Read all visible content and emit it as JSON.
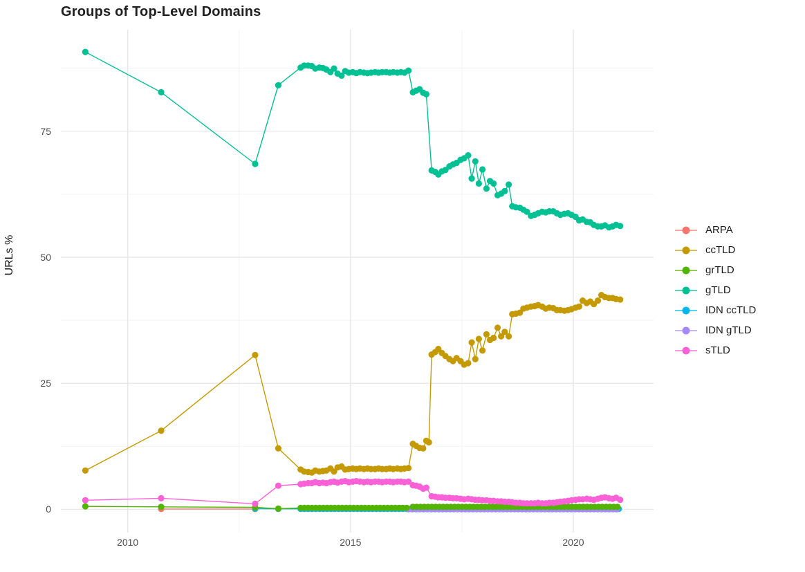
{
  "chart_data": {
    "type": "line",
    "title": "Groups of Top-Level Domains",
    "xlabel": "",
    "ylabel": "URLs %",
    "xlim": [
      2008.5,
      2021.8
    ],
    "ylim": [
      -4.6,
      95.1
    ],
    "x_major_ticks": [
      2010,
      2015,
      2020
    ],
    "x_tick_labels": [
      "2010",
      "2015",
      "2020"
    ],
    "x_minor_gridlines": [
      2012.5,
      2017.5
    ],
    "y_major_ticks": [
      0,
      25,
      50,
      75
    ],
    "y_tick_labels": [
      "0",
      "25",
      "50",
      "75"
    ],
    "y_minor_gridlines": [
      12.5,
      37.5,
      62.5,
      87.5
    ],
    "grid": "major-and-minor, light gray on white",
    "legend_position": "right",
    "colors": {
      "major_grid": "#e7e7e7",
      "minor_grid": "#f3f3f3",
      "tick_text": "#4d4d4d",
      "title_text": "#1f1f1f"
    },
    "series": [
      {
        "name": "ARPA",
        "color": "#F8766D",
        "points": [
          [
            2010.75,
            0.08
          ],
          [
            2012.86,
            0.08
          ]
        ]
      },
      {
        "name": "ccTLD",
        "color": "#C49A00",
        "points": [
          [
            2009.05,
            7.7
          ],
          [
            2010.75,
            15.6
          ],
          [
            2012.86,
            30.6
          ],
          [
            2013.38,
            12.1
          ],
          [
            2013.88,
            7.9
          ],
          [
            2013.96,
            7.5
          ],
          [
            2014.05,
            7.4
          ],
          [
            2014.13,
            7.3
          ],
          [
            2014.21,
            7.7
          ],
          [
            2014.3,
            7.5
          ],
          [
            2014.38,
            7.6
          ],
          [
            2014.46,
            7.7
          ],
          [
            2014.55,
            8.1
          ],
          [
            2014.63,
            7.5
          ],
          [
            2014.71,
            8.3
          ],
          [
            2014.8,
            8.5
          ],
          [
            2014.88,
            7.9
          ],
          [
            2014.96,
            8.0
          ],
          [
            2015.05,
            8.1
          ],
          [
            2015.13,
            8.0
          ],
          [
            2015.21,
            8.1
          ],
          [
            2015.3,
            8.0
          ],
          [
            2015.38,
            8.1
          ],
          [
            2015.46,
            8.0
          ],
          [
            2015.55,
            8.0
          ],
          [
            2015.63,
            8.1
          ],
          [
            2015.71,
            8.0
          ],
          [
            2015.8,
            8.0
          ],
          [
            2015.88,
            8.1
          ],
          [
            2015.96,
            8.0
          ],
          [
            2016.05,
            8.1
          ],
          [
            2016.13,
            8.0
          ],
          [
            2016.21,
            8.1
          ],
          [
            2016.3,
            8.2
          ],
          [
            2016.4,
            13.0
          ],
          [
            2016.47,
            12.6
          ],
          [
            2016.55,
            12.2
          ],
          [
            2016.63,
            12.1
          ],
          [
            2016.7,
            13.6
          ],
          [
            2016.76,
            13.3
          ],
          [
            2016.82,
            30.7
          ],
          [
            2016.9,
            31.2
          ],
          [
            2016.97,
            31.8
          ],
          [
            2017.05,
            31.0
          ],
          [
            2017.13,
            30.4
          ],
          [
            2017.22,
            29.8
          ],
          [
            2017.3,
            29.4
          ],
          [
            2017.38,
            30.0
          ],
          [
            2017.47,
            29.4
          ],
          [
            2017.55,
            28.7
          ],
          [
            2017.64,
            29.0
          ],
          [
            2017.72,
            33.1
          ],
          [
            2017.8,
            29.8
          ],
          [
            2017.88,
            33.8
          ],
          [
            2017.96,
            31.5
          ],
          [
            2018.05,
            34.7
          ],
          [
            2018.13,
            33.6
          ],
          [
            2018.21,
            34.0
          ],
          [
            2018.3,
            36.0
          ],
          [
            2018.38,
            34.3
          ],
          [
            2018.46,
            35.2
          ],
          [
            2018.55,
            34.3
          ],
          [
            2018.63,
            38.7
          ],
          [
            2018.71,
            38.8
          ],
          [
            2018.8,
            39.0
          ],
          [
            2018.88,
            39.8
          ],
          [
            2018.96,
            40.0
          ],
          [
            2019.05,
            40.2
          ],
          [
            2019.13,
            40.3
          ],
          [
            2019.21,
            40.5
          ],
          [
            2019.3,
            40.2
          ],
          [
            2019.38,
            39.8
          ],
          [
            2019.46,
            40.0
          ],
          [
            2019.55,
            39.9
          ],
          [
            2019.63,
            39.5
          ],
          [
            2019.71,
            39.5
          ],
          [
            2019.8,
            39.4
          ],
          [
            2019.88,
            39.5
          ],
          [
            2019.96,
            39.7
          ],
          [
            2020.05,
            40.0
          ],
          [
            2020.13,
            40.2
          ],
          [
            2020.21,
            41.4
          ],
          [
            2020.3,
            40.9
          ],
          [
            2020.38,
            41.2
          ],
          [
            2020.46,
            40.7
          ],
          [
            2020.55,
            41.4
          ],
          [
            2020.63,
            42.5
          ],
          [
            2020.71,
            42.1
          ],
          [
            2020.8,
            41.9
          ],
          [
            2020.88,
            41.9
          ],
          [
            2020.96,
            41.7
          ],
          [
            2021.05,
            41.6
          ]
        ]
      },
      {
        "name": "grTLD",
        "color": "#53B400",
        "points": [
          [
            2009.05,
            0.6
          ],
          [
            2010.75,
            0.5
          ],
          [
            2012.86,
            0.4
          ],
          [
            2013.38,
            0.15
          ]
        ],
        "flat": {
          "from": 2013.88,
          "to": 2016.3,
          "step": 0.085,
          "value": 0.3
        },
        "flat2": {
          "from": 2016.4,
          "to": 2021.05,
          "step": 0.085,
          "value": 0.5
        }
      },
      {
        "name": "gTLD",
        "color": "#00C094",
        "points": [
          [
            2009.05,
            90.7
          ],
          [
            2010.75,
            82.7
          ],
          [
            2012.86,
            68.5
          ],
          [
            2013.38,
            84.1
          ],
          [
            2013.88,
            87.6
          ],
          [
            2013.96,
            88.0
          ],
          [
            2014.05,
            88.0
          ],
          [
            2014.13,
            87.9
          ],
          [
            2014.21,
            87.4
          ],
          [
            2014.3,
            87.6
          ],
          [
            2014.38,
            87.5
          ],
          [
            2014.46,
            87.2
          ],
          [
            2014.55,
            86.7
          ],
          [
            2014.63,
            87.4
          ],
          [
            2014.71,
            86.4
          ],
          [
            2014.8,
            86.0
          ],
          [
            2014.88,
            86.9
          ],
          [
            2014.96,
            86.6
          ],
          [
            2015.05,
            86.7
          ],
          [
            2015.13,
            86.5
          ],
          [
            2015.21,
            86.7
          ],
          [
            2015.3,
            86.6
          ],
          [
            2015.38,
            86.5
          ],
          [
            2015.46,
            86.6
          ],
          [
            2015.55,
            86.7
          ],
          [
            2015.63,
            86.6
          ],
          [
            2015.71,
            86.7
          ],
          [
            2015.8,
            86.7
          ],
          [
            2015.88,
            86.6
          ],
          [
            2015.96,
            86.7
          ],
          [
            2016.05,
            86.6
          ],
          [
            2016.13,
            86.7
          ],
          [
            2016.21,
            86.6
          ],
          [
            2016.3,
            87.0
          ],
          [
            2016.4,
            82.7
          ],
          [
            2016.47,
            83.0
          ],
          [
            2016.55,
            83.3
          ],
          [
            2016.63,
            82.6
          ],
          [
            2016.7,
            82.3
          ],
          [
            2016.82,
            67.2
          ],
          [
            2016.9,
            66.9
          ],
          [
            2016.97,
            66.4
          ],
          [
            2017.05,
            67.0
          ],
          [
            2017.13,
            67.3
          ],
          [
            2017.22,
            68.0
          ],
          [
            2017.3,
            68.4
          ],
          [
            2017.38,
            68.7
          ],
          [
            2017.47,
            69.3
          ],
          [
            2017.55,
            69.6
          ],
          [
            2017.64,
            70.2
          ],
          [
            2017.72,
            65.6
          ],
          [
            2017.8,
            69.0
          ],
          [
            2017.88,
            64.6
          ],
          [
            2017.96,
            67.4
          ],
          [
            2018.05,
            63.6
          ],
          [
            2018.13,
            65.1
          ],
          [
            2018.21,
            64.6
          ],
          [
            2018.3,
            62.3
          ],
          [
            2018.38,
            62.6
          ],
          [
            2018.46,
            63.1
          ],
          [
            2018.55,
            64.4
          ],
          [
            2018.63,
            60.1
          ],
          [
            2018.71,
            59.9
          ],
          [
            2018.8,
            59.8
          ],
          [
            2018.88,
            59.4
          ],
          [
            2018.96,
            59.0
          ],
          [
            2019.05,
            58.2
          ],
          [
            2019.13,
            58.4
          ],
          [
            2019.21,
            58.7
          ],
          [
            2019.3,
            59.0
          ],
          [
            2019.38,
            58.9
          ],
          [
            2019.46,
            59.1
          ],
          [
            2019.55,
            59.1
          ],
          [
            2019.63,
            58.7
          ],
          [
            2019.71,
            58.4
          ],
          [
            2019.8,
            58.6
          ],
          [
            2019.88,
            58.7
          ],
          [
            2019.96,
            58.4
          ],
          [
            2020.05,
            58.0
          ],
          [
            2020.13,
            57.3
          ],
          [
            2020.21,
            57.5
          ],
          [
            2020.3,
            57.0
          ],
          [
            2020.38,
            56.9
          ],
          [
            2020.46,
            56.4
          ],
          [
            2020.55,
            56.1
          ],
          [
            2020.63,
            56.1
          ],
          [
            2020.71,
            56.3
          ],
          [
            2020.8,
            55.9
          ],
          [
            2020.88,
            56.1
          ],
          [
            2020.96,
            56.4
          ],
          [
            2021.05,
            56.2
          ]
        ]
      },
      {
        "name": "IDN ccTLD",
        "color": "#00B6EB",
        "points": [
          [
            2012.86,
            0.15
          ],
          [
            2013.38,
            0.1
          ]
        ],
        "flat": {
          "from": 2013.88,
          "to": 2021.05,
          "step": 0.085,
          "value": 0.1
        }
      },
      {
        "name": "IDN gTLD",
        "color": "#A58AFF",
        "points": [],
        "flat": {
          "from": 2016.3,
          "to": 2021.05,
          "step": 0.085,
          "value": 0.02
        }
      },
      {
        "name": "sTLD",
        "color": "#FB61D7",
        "points": [
          [
            2009.05,
            1.8
          ],
          [
            2010.75,
            2.2
          ],
          [
            2012.86,
            1.1
          ],
          [
            2013.38,
            4.7
          ],
          [
            2013.88,
            5.0
          ],
          [
            2013.96,
            5.1
          ],
          [
            2014.05,
            5.2
          ],
          [
            2014.13,
            5.2
          ],
          [
            2014.21,
            5.4
          ],
          [
            2014.3,
            5.2
          ],
          [
            2014.38,
            5.3
          ],
          [
            2014.46,
            5.2
          ],
          [
            2014.55,
            5.4
          ],
          [
            2014.63,
            5.5
          ],
          [
            2014.71,
            5.3
          ],
          [
            2014.8,
            5.5
          ],
          [
            2014.88,
            5.6
          ],
          [
            2014.96,
            5.4
          ],
          [
            2015.05,
            5.5
          ],
          [
            2015.13,
            5.6
          ],
          [
            2015.21,
            5.5
          ],
          [
            2015.3,
            5.4
          ],
          [
            2015.38,
            5.5
          ],
          [
            2015.46,
            5.4
          ],
          [
            2015.55,
            5.5
          ],
          [
            2015.63,
            5.5
          ],
          [
            2015.71,
            5.4
          ],
          [
            2015.8,
            5.5
          ],
          [
            2015.88,
            5.5
          ],
          [
            2015.96,
            5.4
          ],
          [
            2016.05,
            5.5
          ],
          [
            2016.13,
            5.5
          ],
          [
            2016.21,
            5.4
          ],
          [
            2016.3,
            5.5
          ],
          [
            2016.4,
            4.8
          ],
          [
            2016.47,
            4.7
          ],
          [
            2016.55,
            4.5
          ],
          [
            2016.63,
            4.1
          ],
          [
            2016.7,
            4.3
          ],
          [
            2016.82,
            2.6
          ],
          [
            2016.9,
            2.5
          ],
          [
            2016.97,
            2.4
          ],
          [
            2017.05,
            2.4
          ],
          [
            2017.13,
            2.3
          ],
          [
            2017.22,
            2.3
          ],
          [
            2017.3,
            2.2
          ],
          [
            2017.38,
            2.2
          ],
          [
            2017.47,
            2.1
          ],
          [
            2017.55,
            2.0
          ],
          [
            2017.64,
            2.1
          ],
          [
            2017.72,
            2.0
          ],
          [
            2017.8,
            1.9
          ],
          [
            2017.88,
            1.9
          ],
          [
            2017.96,
            1.8
          ],
          [
            2018.05,
            1.8
          ],
          [
            2018.13,
            1.7
          ],
          [
            2018.21,
            1.7
          ],
          [
            2018.3,
            1.6
          ],
          [
            2018.38,
            1.6
          ],
          [
            2018.46,
            1.5
          ],
          [
            2018.55,
            1.5
          ],
          [
            2018.63,
            1.4
          ],
          [
            2018.71,
            1.3
          ],
          [
            2018.8,
            1.3
          ],
          [
            2018.88,
            1.2
          ],
          [
            2018.96,
            1.2
          ],
          [
            2019.05,
            1.2
          ],
          [
            2019.13,
            1.2
          ],
          [
            2019.21,
            1.3
          ],
          [
            2019.3,
            1.2
          ],
          [
            2019.38,
            1.2
          ],
          [
            2019.46,
            1.3
          ],
          [
            2019.55,
            1.3
          ],
          [
            2019.63,
            1.4
          ],
          [
            2019.71,
            1.5
          ],
          [
            2019.8,
            1.6
          ],
          [
            2019.88,
            1.7
          ],
          [
            2019.96,
            1.8
          ],
          [
            2020.05,
            1.9
          ],
          [
            2020.13,
            2.0
          ],
          [
            2020.21,
            2.0
          ],
          [
            2020.3,
            2.1
          ],
          [
            2020.38,
            2.0
          ],
          [
            2020.46,
            1.9
          ],
          [
            2020.55,
            2.1
          ],
          [
            2020.63,
            2.3
          ],
          [
            2020.71,
            2.4
          ],
          [
            2020.8,
            2.2
          ],
          [
            2020.88,
            2.1
          ],
          [
            2020.96,
            2.3
          ],
          [
            2021.05,
            1.9
          ]
        ]
      }
    ]
  }
}
